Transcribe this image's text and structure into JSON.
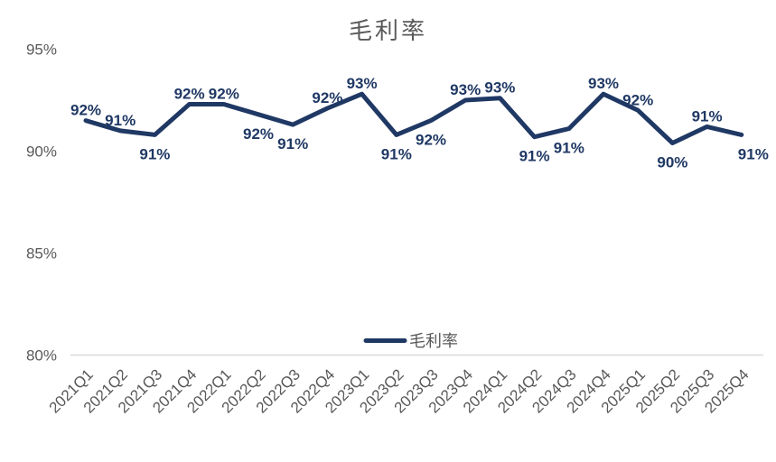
{
  "chart_data": {
    "type": "line",
    "title": "毛利率",
    "categories": [
      "2021Q1",
      "2021Q2",
      "2021Q3",
      "2021Q4",
      "2022Q1",
      "2022Q2",
      "2022Q3",
      "2022Q4",
      "2023Q1",
      "2023Q2",
      "2023Q3",
      "2023Q4",
      "2024Q1",
      "2024Q2",
      "2024Q3",
      "2024Q4",
      "2025Q1",
      "2025Q2",
      "2025Q3",
      "2025Q4"
    ],
    "series": [
      {
        "name": "毛利率",
        "values": [
          92,
          91,
          91,
          92,
          92,
          92,
          91,
          92,
          93,
          91,
          92,
          93,
          93,
          91,
          91,
          93,
          92,
          90,
          91,
          91
        ],
        "data_labels": [
          "92%",
          "91%",
          "91%",
          "92%",
          "92%",
          "92%",
          "91%",
          "92%",
          "93%",
          "91%",
          "92%",
          "93%",
          "93%",
          "91%",
          "91%",
          "93%",
          "92%",
          "90%",
          "91%",
          "91%"
        ],
        "values_precise_estimate": [
          91.5,
          91.0,
          90.8,
          92.3,
          92.3,
          91.8,
          91.3,
          92.1,
          92.8,
          90.8,
          91.5,
          92.5,
          92.6,
          90.7,
          91.1,
          92.8,
          92.0,
          90.4,
          91.2,
          90.8
        ],
        "label_side": [
          "above",
          "above",
          "below",
          "above",
          "above",
          "below",
          "below",
          "above",
          "above",
          "below",
          "below",
          "above",
          "above",
          "below",
          "below",
          "above",
          "above",
          "below",
          "above",
          "below"
        ]
      }
    ],
    "y_axis": {
      "tick_labels": [
        "95%",
        "90%",
        "85%",
        "80%"
      ],
      "tick_values": [
        95,
        90,
        85,
        80
      ],
      "range": [
        80,
        95
      ]
    },
    "x_axis": {
      "tick_rotation_degrees": 45
    },
    "legend": {
      "label": "毛利率",
      "position": "bottom-center"
    },
    "grid": {
      "visible_lines": [
        "80%"
      ]
    },
    "colors": {
      "line": "#1f3864",
      "data_label_text": "#1f3864",
      "axis_text": "#595959",
      "title_text": "#595959",
      "gridline": "#d9d9d9",
      "background": "#ffffff"
    }
  }
}
